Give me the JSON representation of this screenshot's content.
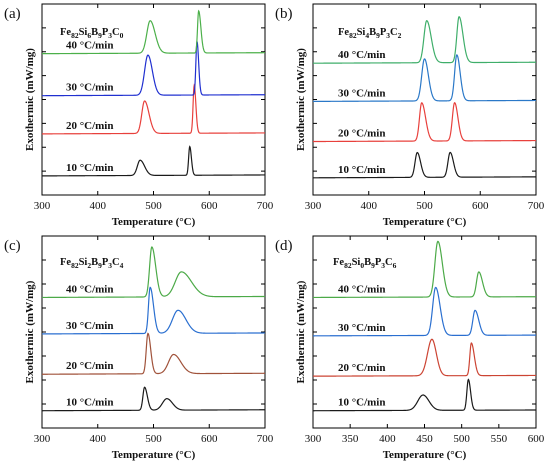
{
  "figure": {
    "x_title": "Temperature (°C)",
    "y_title": "Exothermic (mW/mg)"
  },
  "chart_data": [
    {
      "panel": "(a)",
      "type": "line",
      "composition": [
        {
          "t": "Fe",
          "sub": false
        },
        {
          "t": "82",
          "sub": true
        },
        {
          "t": "Si",
          "sub": false
        },
        {
          "t": "6",
          "sub": true
        },
        {
          "t": "B",
          "sub": false
        },
        {
          "t": "9",
          "sub": true
        },
        {
          "t": "P",
          "sub": false
        },
        {
          "t": "3",
          "sub": true
        },
        {
          "t": "C",
          "sub": false
        },
        {
          "t": "0",
          "sub": true
        }
      ],
      "xlabel": "Temperature (°C)",
      "ylabel": "Exothermic (mW/mg)",
      "xlim": [
        300,
        700
      ],
      "xticks": [
        300,
        400,
        500,
        600,
        700
      ],
      "ylim": [
        0,
        10
      ],
      "ytick_labels": false,
      "series": [
        {
          "name": "10 °C/min",
          "color": "#1a1a1a",
          "baseline": 1.0,
          "drift": 0.05,
          "peaks": [
            {
              "x": 476,
              "h": 0.8,
              "wl": 5,
              "wr": 8
            },
            {
              "x": 565,
              "h": 1.5,
              "wl": 2,
              "wr": 3
            }
          ]
        },
        {
          "name": "20 °C/min",
          "color": "#e8403c",
          "baseline": 3.2,
          "drift": 0.05,
          "peaks": [
            {
              "x": 484,
              "h": 1.7,
              "wl": 5,
              "wr": 8
            },
            {
              "x": 573,
              "h": 2.5,
              "wl": 2,
              "wr": 3
            }
          ]
        },
        {
          "name": "30 °C/min",
          "color": "#2030d0",
          "baseline": 5.2,
          "drift": 0.05,
          "peaks": [
            {
              "x": 490,
              "h": 2.1,
              "wl": 6,
              "wr": 8
            },
            {
              "x": 578,
              "h": 2.8,
              "wl": 2,
              "wr": 3
            }
          ]
        },
        {
          "name": "40 °C/min",
          "color": "#4cb04a",
          "baseline": 7.4,
          "drift": 0.05,
          "peaks": [
            {
              "x": 494,
              "h": 1.7,
              "wl": 6,
              "wr": 9
            },
            {
              "x": 581,
              "h": 2.2,
              "wl": 2,
              "wr": 4
            }
          ]
        }
      ]
    },
    {
      "panel": "(b)",
      "type": "line",
      "composition": [
        {
          "t": "Fe",
          "sub": false
        },
        {
          "t": "82",
          "sub": true
        },
        {
          "t": "Si",
          "sub": false
        },
        {
          "t": "4",
          "sub": true
        },
        {
          "t": "B",
          "sub": false
        },
        {
          "t": "9",
          "sub": true
        },
        {
          "t": "P",
          "sub": false
        },
        {
          "t": "3",
          "sub": true
        },
        {
          "t": "C",
          "sub": false
        },
        {
          "t": "2",
          "sub": true
        }
      ],
      "xlabel": "Temperature (°C)",
      "ylabel": "Exothermic (mW/mg)",
      "xlim": [
        300,
        700
      ],
      "xticks": [
        300,
        400,
        500,
        600,
        700
      ],
      "ylim": [
        0,
        10
      ],
      "ytick_labels": false,
      "series": [
        {
          "name": "10 °C/min",
          "color": "#1a1a1a",
          "baseline": 0.9,
          "drift": 0.05,
          "peaks": [
            {
              "x": 487,
              "h": 1.3,
              "wl": 4,
              "wr": 6
            },
            {
              "x": 546,
              "h": 1.3,
              "wl": 4,
              "wr": 6
            }
          ]
        },
        {
          "name": "20 °C/min",
          "color": "#e8403c",
          "baseline": 2.8,
          "drift": 0.05,
          "peaks": [
            {
              "x": 495,
              "h": 2.0,
              "wl": 4,
              "wr": 7
            },
            {
              "x": 554,
              "h": 2.0,
              "wl": 4,
              "wr": 6
            }
          ]
        },
        {
          "name": "30 °C/min",
          "color": "#2a78c8",
          "baseline": 4.9,
          "drift": 0.05,
          "peaks": [
            {
              "x": 500,
              "h": 2.2,
              "wl": 5,
              "wr": 7
            },
            {
              "x": 558,
              "h": 2.4,
              "wl": 4,
              "wr": 6
            }
          ]
        },
        {
          "name": "40 °C/min",
          "color": "#3fae6a",
          "baseline": 6.9,
          "drift": 0.05,
          "peaks": [
            {
              "x": 504,
              "h": 2.2,
              "wl": 5,
              "wr": 8
            },
            {
              "x": 562,
              "h": 2.4,
              "wl": 4,
              "wr": 7
            }
          ]
        }
      ]
    },
    {
      "panel": "(c)",
      "type": "line",
      "composition": [
        {
          "t": "Fe",
          "sub": false
        },
        {
          "t": "82",
          "sub": true
        },
        {
          "t": "Si",
          "sub": false
        },
        {
          "t": "2",
          "sub": true
        },
        {
          "t": "B",
          "sub": false
        },
        {
          "t": "9",
          "sub": true
        },
        {
          "t": "P",
          "sub": false
        },
        {
          "t": "3",
          "sub": true
        },
        {
          "t": "C",
          "sub": false
        },
        {
          "t": "4",
          "sub": true
        }
      ],
      "xlabel": "Temperature (°C)",
      "ylabel": "Exothermic (mW/mg)",
      "xlim": [
        300,
        700
      ],
      "xticks": [
        300,
        400,
        500,
        600,
        700
      ],
      "ylim": [
        0,
        10
      ],
      "ytick_labels": false,
      "series": [
        {
          "name": "10 °C/min",
          "color": "#1a1a1a",
          "baseline": 0.9,
          "drift": 0.05,
          "peaks": [
            {
              "x": 484,
              "h": 1.2,
              "wl": 3,
              "wr": 5
            },
            {
              "x": 524,
              "h": 0.6,
              "wl": 8,
              "wr": 10
            }
          ]
        },
        {
          "name": "20 °C/min",
          "color": "#a0523a",
          "baseline": 2.8,
          "drift": 0.05,
          "peaks": [
            {
              "x": 490,
              "h": 2.1,
              "wl": 3,
              "wr": 5
            },
            {
              "x": 536,
              "h": 1.0,
              "wl": 9,
              "wr": 13
            }
          ]
        },
        {
          "name": "30 °C/min",
          "color": "#2a6fd0",
          "baseline": 4.9,
          "drift": 0.05,
          "peaks": [
            {
              "x": 494,
              "h": 2.4,
              "wl": 3,
              "wr": 6
            },
            {
              "x": 544,
              "h": 1.2,
              "wl": 10,
              "wr": 14
            }
          ]
        },
        {
          "name": "40 °C/min",
          "color": "#4caa48",
          "baseline": 6.8,
          "drift": 0.05,
          "peaks": [
            {
              "x": 497,
              "h": 2.6,
              "wl": 4,
              "wr": 7
            },
            {
              "x": 550,
              "h": 1.3,
              "wl": 11,
              "wr": 18
            }
          ]
        }
      ]
    },
    {
      "panel": "(d)",
      "type": "line",
      "composition": [
        {
          "t": "Fe",
          "sub": false
        },
        {
          "t": "82",
          "sub": true
        },
        {
          "t": "Si",
          "sub": false
        },
        {
          "t": "0",
          "sub": true
        },
        {
          "t": "B",
          "sub": false
        },
        {
          "t": "9",
          "sub": true
        },
        {
          "t": "P",
          "sub": false
        },
        {
          "t": "3",
          "sub": true
        },
        {
          "t": "C",
          "sub": false
        },
        {
          "t": "6",
          "sub": true
        }
      ],
      "xlabel": "Temperature (°C)",
      "ylabel": "Exothermic (mW/mg)",
      "xlim": [
        300,
        600
      ],
      "xticks": [
        300,
        350,
        400,
        450,
        500,
        550,
        600
      ],
      "ylim": [
        0,
        10
      ],
      "ytick_labels": false,
      "series": [
        {
          "name": "10 °C/min",
          "color": "#1a1a1a",
          "baseline": 0.9,
          "drift": 0.05,
          "peaks": [
            {
              "x": 448,
              "h": 0.8,
              "wl": 7,
              "wr": 8
            },
            {
              "x": 509,
              "h": 1.6,
              "wl": 2,
              "wr": 3
            }
          ]
        },
        {
          "name": "20 °C/min",
          "color": "#cc4433",
          "baseline": 2.7,
          "drift": 0.05,
          "peaks": [
            {
              "x": 460,
              "h": 1.9,
              "wl": 6,
              "wr": 6
            },
            {
              "x": 513,
              "h": 1.7,
              "wl": 2,
              "wr": 4
            }
          ]
        },
        {
          "name": "30 °C/min",
          "color": "#2a6fd0",
          "baseline": 4.8,
          "drift": 0.05,
          "peaks": [
            {
              "x": 465,
              "h": 2.5,
              "wl": 4,
              "wr": 6
            },
            {
              "x": 518,
              "h": 1.3,
              "wl": 3,
              "wr": 5
            }
          ]
        },
        {
          "name": "40 °C/min",
          "color": "#4caa48",
          "baseline": 6.8,
          "drift": 0.05,
          "peaks": [
            {
              "x": 468,
              "h": 2.9,
              "wl": 4,
              "wr": 6
            },
            {
              "x": 523,
              "h": 1.3,
              "wl": 3,
              "wr": 5
            }
          ]
        }
      ]
    }
  ]
}
